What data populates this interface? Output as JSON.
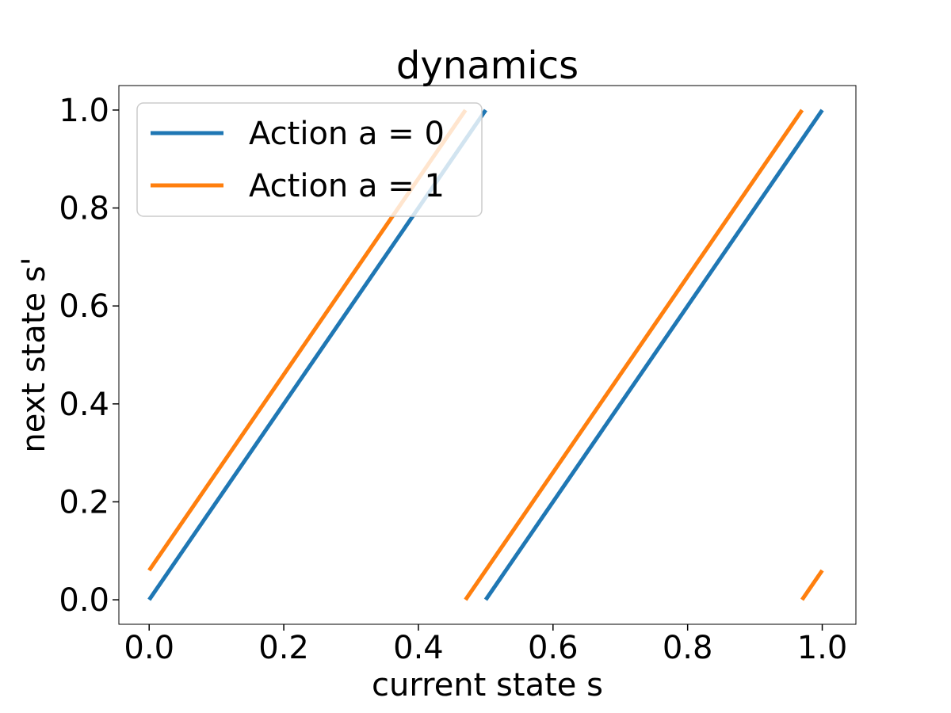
{
  "chart_data": {
    "type": "line",
    "title": "dynamics",
    "xlabel": "current state s",
    "ylabel": "next state s'",
    "xlim": [
      -0.045,
      1.05
    ],
    "ylim": [
      -0.05,
      1.05
    ],
    "xticks": [
      "0.0",
      "0.2",
      "0.4",
      "0.6",
      "0.8",
      "1.0"
    ],
    "yticks": [
      "0.0",
      "0.2",
      "0.4",
      "0.6",
      "0.8",
      "1.0"
    ],
    "grid": false,
    "legend_position": "top-left",
    "series": [
      {
        "name": "Action a = 0",
        "color": "#1f77b4",
        "segments": [
          [
            [
              0.0,
              0.0
            ],
            [
              0.5,
              1.0
            ]
          ],
          [
            [
              0.5,
              0.0
            ],
            [
              1.0,
              1.0
            ]
          ]
        ]
      },
      {
        "name": "Action a = 1",
        "color": "#ff7f0e",
        "segments": [
          [
            [
              0.0,
              0.06
            ],
            [
              0.47,
              1.0
            ]
          ],
          [
            [
              0.47,
              0.0
            ],
            [
              0.97,
              1.0
            ]
          ],
          [
            [
              0.97,
              0.0
            ],
            [
              1.0,
              0.06
            ]
          ]
        ]
      }
    ]
  }
}
